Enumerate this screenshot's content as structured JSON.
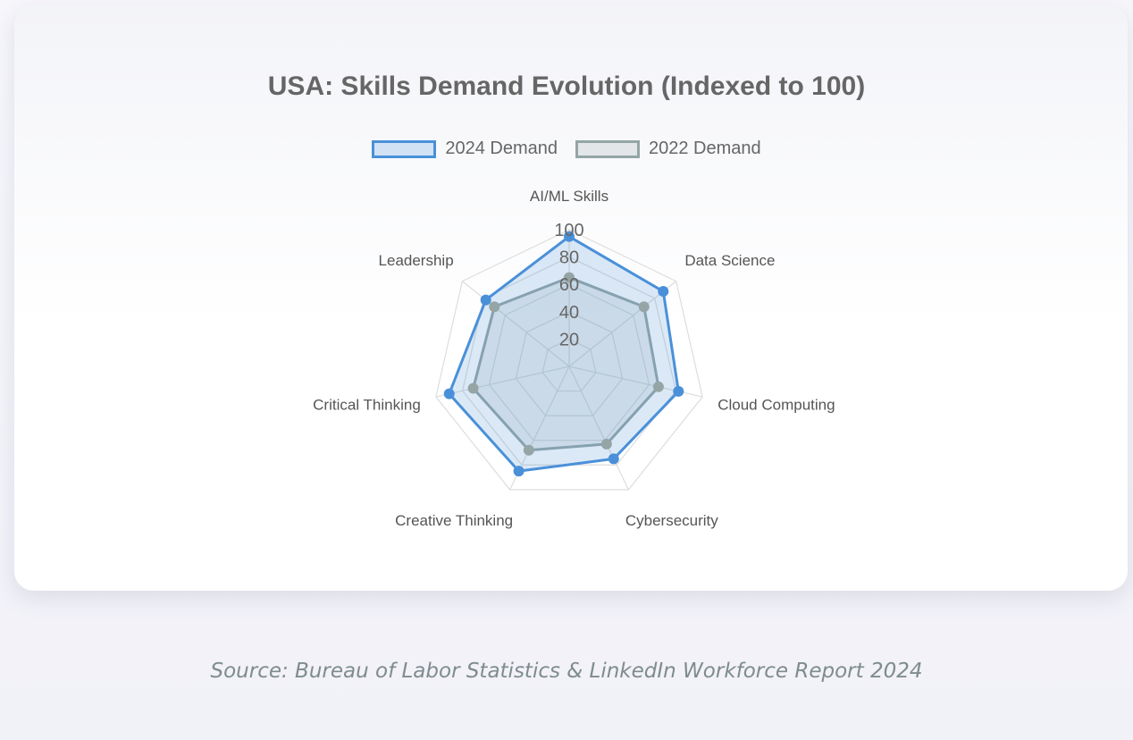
{
  "chart_data": {
    "type": "radar",
    "title": "USA: Skills Demand Evolution (Indexed to 100)",
    "categories": [
      "AI/ML Skills",
      "Data Science",
      "Cloud Computing",
      "Cybersecurity",
      "Creative Thinking",
      "Critical Thinking",
      "Leadership"
    ],
    "series": [
      {
        "name": "2024 Demand",
        "values": [
          95,
          88,
          82,
          75,
          85,
          90,
          78
        ],
        "color": "#4a90d9"
      },
      {
        "name": "2022 Demand",
        "values": [
          65,
          70,
          67,
          63,
          68,
          72,
          70
        ],
        "color": "#95a5a6"
      }
    ],
    "r_range": [
      0,
      100
    ],
    "r_ticks": [
      20,
      40,
      60,
      80,
      100
    ],
    "grid": true,
    "legend_position": "top"
  },
  "source": "Source: Bureau of Labor Statistics & LinkedIn Workforce Report 2024"
}
